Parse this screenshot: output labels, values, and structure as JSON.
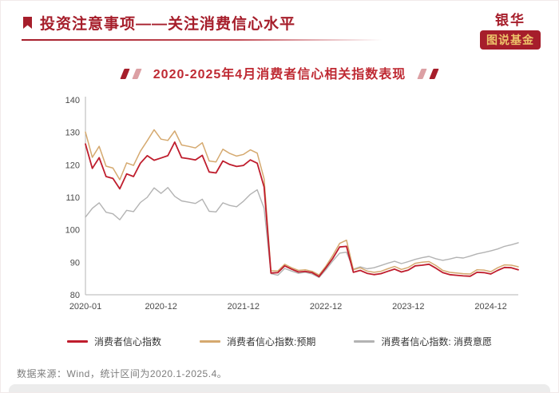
{
  "page": {
    "header": {
      "title": "投资注意事项——关注消费信心水平",
      "logo_top": "银华",
      "logo_bottom": "图说基金"
    },
    "footer": "数据来源：Wind，统计区间为2020.1-2025.4。"
  },
  "colors": {
    "brand_red": "#a61e2b",
    "chart_title_red": "#bf2a33",
    "logo_gold": "#edc36a",
    "series_main": "#bf1d2d",
    "series_expect": "#d5a96f",
    "series_willing": "#b3b3b3"
  },
  "chart_data": {
    "type": "line",
    "title": "2020-2025年4月消费者信心相关指数表现",
    "grid": false,
    "legend_position": "bottom",
    "ylim": [
      80,
      140
    ],
    "yticks": [
      80,
      90,
      100,
      110,
      120,
      130,
      140
    ],
    "x_tick_labels": [
      "2020-01",
      "2020-12",
      "2021-12",
      "2022-12",
      "2023-12",
      "2024-12"
    ],
    "x": [
      "2020-01",
      "2020-02",
      "2020-03",
      "2020-04",
      "2020-05",
      "2020-06",
      "2020-07",
      "2020-08",
      "2020-09",
      "2020-10",
      "2020-11",
      "2020-12",
      "2021-01",
      "2021-02",
      "2021-03",
      "2021-04",
      "2021-05",
      "2021-06",
      "2021-07",
      "2021-08",
      "2021-09",
      "2021-10",
      "2021-11",
      "2021-12",
      "2022-01",
      "2022-02",
      "2022-03",
      "2022-04",
      "2022-05",
      "2022-06",
      "2022-07",
      "2022-08",
      "2022-09",
      "2022-10",
      "2022-11",
      "2022-12",
      "2023-01",
      "2023-02",
      "2023-03",
      "2023-04",
      "2023-05",
      "2023-06",
      "2023-07",
      "2023-08",
      "2023-09",
      "2023-10",
      "2023-11",
      "2023-12",
      "2024-01",
      "2024-02",
      "2024-03",
      "2024-04",
      "2024-05",
      "2024-06",
      "2024-07",
      "2024-08",
      "2024-09",
      "2024-10",
      "2024-11",
      "2024-12",
      "2025-01",
      "2025-02",
      "2025-03",
      "2025-04"
    ],
    "series": [
      {
        "name": "消费者信心指数",
        "color": "#bf1d2d",
        "values": [
          126.4,
          118.9,
          122.2,
          116.4,
          115.8,
          112.6,
          117.2,
          116.4,
          120.5,
          122.8,
          121.4,
          122.1,
          122.8,
          127.0,
          122.2,
          121.9,
          121.5,
          122.9,
          117.8,
          117.5,
          121.2,
          120.1,
          119.5,
          119.8,
          121.5,
          120.5,
          113.2,
          86.7,
          86.8,
          88.9,
          87.9,
          87.0,
          87.2,
          86.8,
          85.6,
          88.3,
          91.2,
          94.7,
          94.9,
          86.9,
          87.5,
          86.6,
          86.2,
          86.5,
          87.2,
          87.9,
          87.0,
          87.6,
          88.9,
          89.1,
          89.4,
          88.2,
          86.8,
          86.2,
          86.0,
          85.8,
          85.7,
          86.9,
          86.8,
          86.4,
          87.5,
          88.4,
          88.3,
          87.7
        ]
      },
      {
        "name": "消费者信心指数:预期",
        "color": "#d5a96f",
        "values": [
          130.1,
          122.3,
          125.7,
          119.6,
          119.0,
          115.4,
          120.6,
          119.8,
          124.2,
          127.4,
          130.8,
          127.9,
          127.5,
          130.4,
          126.1,
          125.7,
          125.2,
          126.8,
          121.2,
          120.9,
          124.8,
          123.5,
          122.7,
          123.2,
          124.6,
          123.6,
          115.7,
          87.4,
          87.3,
          89.4,
          88.3,
          87.5,
          87.7,
          87.2,
          86.1,
          88.8,
          92.1,
          95.8,
          96.8,
          87.7,
          88.3,
          87.3,
          86.9,
          87.2,
          88.0,
          88.7,
          87.8,
          88.4,
          89.7,
          90.0,
          90.2,
          89.0,
          87.5,
          86.9,
          86.7,
          86.5,
          86.4,
          87.7,
          87.6,
          87.1,
          88.3,
          89.2,
          89.1,
          88.6
        ]
      },
      {
        "name": "消费者信心指数: 消费意愿",
        "color": "#b3b3b3",
        "values": [
          103.9,
          106.6,
          108.3,
          105.4,
          104.9,
          103.1,
          106.0,
          105.6,
          108.4,
          110.0,
          112.9,
          111.2,
          113.0,
          110.3,
          108.9,
          108.5,
          108.1,
          109.4,
          105.7,
          105.5,
          108.3,
          107.5,
          107.1,
          108.8,
          110.9,
          112.3,
          106.6,
          86.5,
          86.0,
          88.1,
          87.3,
          86.6,
          86.9,
          86.4,
          85.3,
          87.7,
          90.4,
          92.8,
          93.1,
          87.9,
          88.6,
          88.0,
          88.3,
          89.0,
          89.7,
          90.3,
          89.6,
          90.2,
          90.9,
          91.4,
          91.8,
          91.1,
          90.6,
          91.0,
          91.5,
          91.3,
          91.9,
          92.6,
          93.0,
          93.5,
          94.1,
          94.9,
          95.4,
          96.0
        ]
      }
    ]
  }
}
